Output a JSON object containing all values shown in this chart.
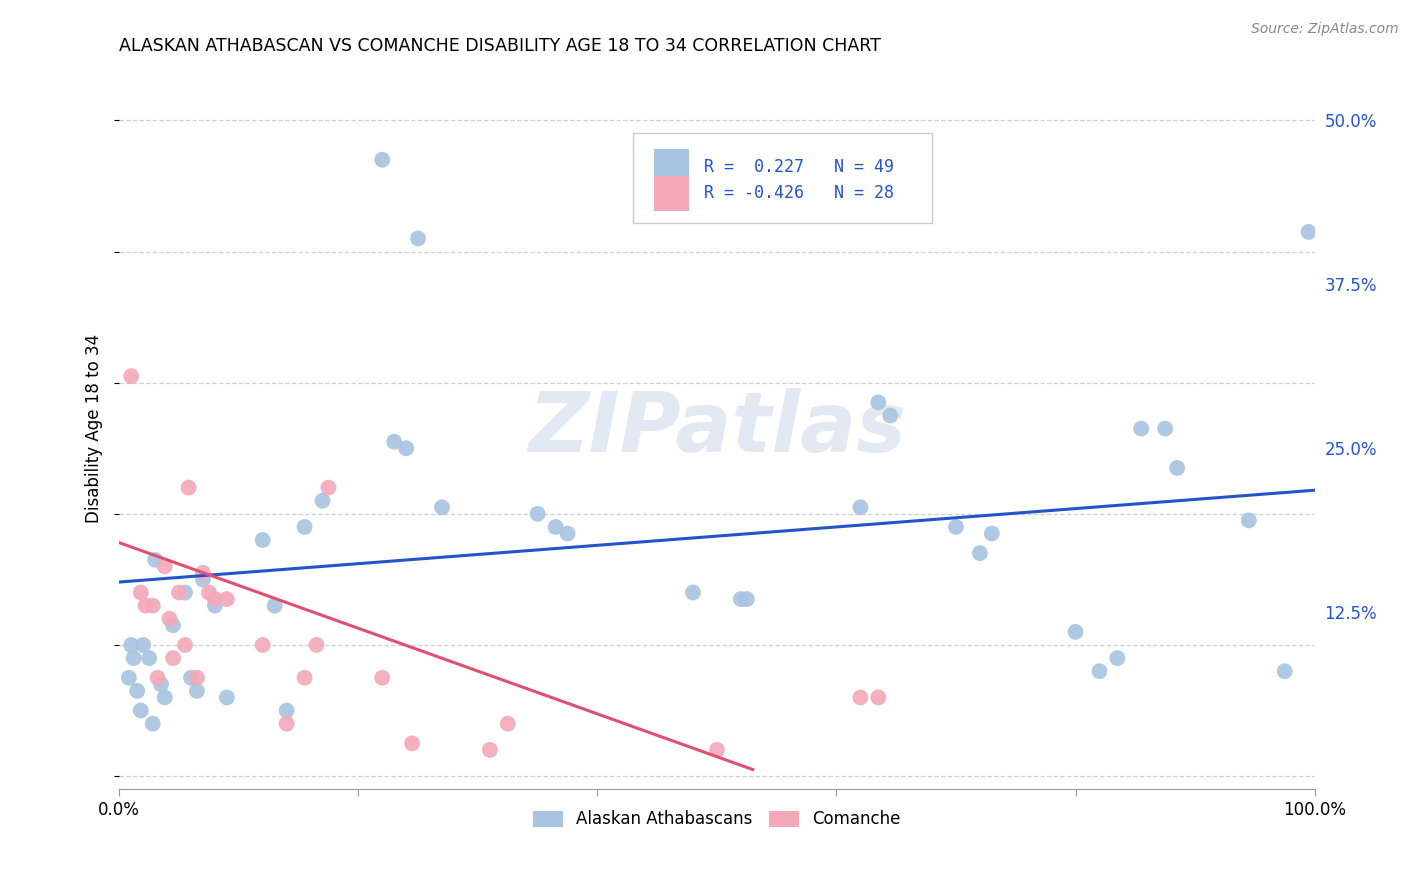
{
  "title": "ALASKAN ATHABASCAN VS COMANCHE DISABILITY AGE 18 TO 34 CORRELATION CHART",
  "source": "Source: ZipAtlas.com",
  "ylabel": "Disability Age 18 to 34",
  "yticks": [
    0.0,
    0.125,
    0.25,
    0.375,
    0.5
  ],
  "ytick_labels": [
    "",
    "12.5%",
    "25.0%",
    "37.5%",
    "50.0%"
  ],
  "xlim": [
    0.0,
    1.0
  ],
  "ylim": [
    -0.01,
    0.54
  ],
  "legend_r_blue": " 0.227",
  "legend_n_blue": "49",
  "legend_r_pink": "-0.426",
  "legend_n_pink": "28",
  "blue_color": "#a8c4e0",
  "pink_color": "#f4a8b8",
  "line_blue": "#2255cc",
  "line_pink": "#e05070",
  "watermark_text": "ZIPatlas",
  "blue_scatter_x": [
    0.22,
    0.25,
    0.03,
    0.055,
    0.07,
    0.08,
    0.045,
    0.02,
    0.025,
    0.035,
    0.038,
    0.06,
    0.065,
    0.09,
    0.14,
    0.13,
    0.12,
    0.155,
    0.17,
    0.24,
    0.23,
    0.35,
    0.365,
    0.48,
    0.52,
    0.62,
    0.635,
    0.645,
    0.7,
    0.72,
    0.73,
    0.8,
    0.82,
    0.835,
    0.855,
    0.875,
    0.885,
    0.945,
    0.975,
    0.995,
    0.525,
    0.375,
    0.27,
    0.01,
    0.012,
    0.008,
    0.015,
    0.018,
    0.028
  ],
  "blue_scatter_y": [
    0.47,
    0.41,
    0.165,
    0.14,
    0.15,
    0.13,
    0.115,
    0.1,
    0.09,
    0.07,
    0.06,
    0.075,
    0.065,
    0.06,
    0.05,
    0.13,
    0.18,
    0.19,
    0.21,
    0.25,
    0.255,
    0.2,
    0.19,
    0.14,
    0.135,
    0.205,
    0.285,
    0.275,
    0.19,
    0.17,
    0.185,
    0.11,
    0.08,
    0.09,
    0.265,
    0.265,
    0.235,
    0.195,
    0.08,
    0.415,
    0.135,
    0.185,
    0.205,
    0.1,
    0.09,
    0.075,
    0.065,
    0.05,
    0.04
  ],
  "pink_scatter_x": [
    0.01,
    0.018,
    0.022,
    0.028,
    0.032,
    0.038,
    0.042,
    0.045,
    0.05,
    0.055,
    0.058,
    0.065,
    0.07,
    0.075,
    0.08,
    0.09,
    0.12,
    0.14,
    0.155,
    0.165,
    0.175,
    0.22,
    0.245,
    0.31,
    0.325,
    0.5,
    0.62,
    0.635
  ],
  "pink_scatter_y": [
    0.305,
    0.14,
    0.13,
    0.13,
    0.075,
    0.16,
    0.12,
    0.09,
    0.14,
    0.1,
    0.22,
    0.075,
    0.155,
    0.14,
    0.135,
    0.135,
    0.1,
    0.04,
    0.075,
    0.1,
    0.22,
    0.075,
    0.025,
    0.02,
    0.04,
    0.02,
    0.06,
    0.06
  ],
  "blue_line_x": [
    0.0,
    1.0
  ],
  "blue_line_y": [
    0.148,
    0.218
  ],
  "pink_line_x": [
    0.0,
    0.53
  ],
  "pink_line_y": [
    0.178,
    0.005
  ],
  "grid_color": "#cccccc",
  "grid_style": "--"
}
